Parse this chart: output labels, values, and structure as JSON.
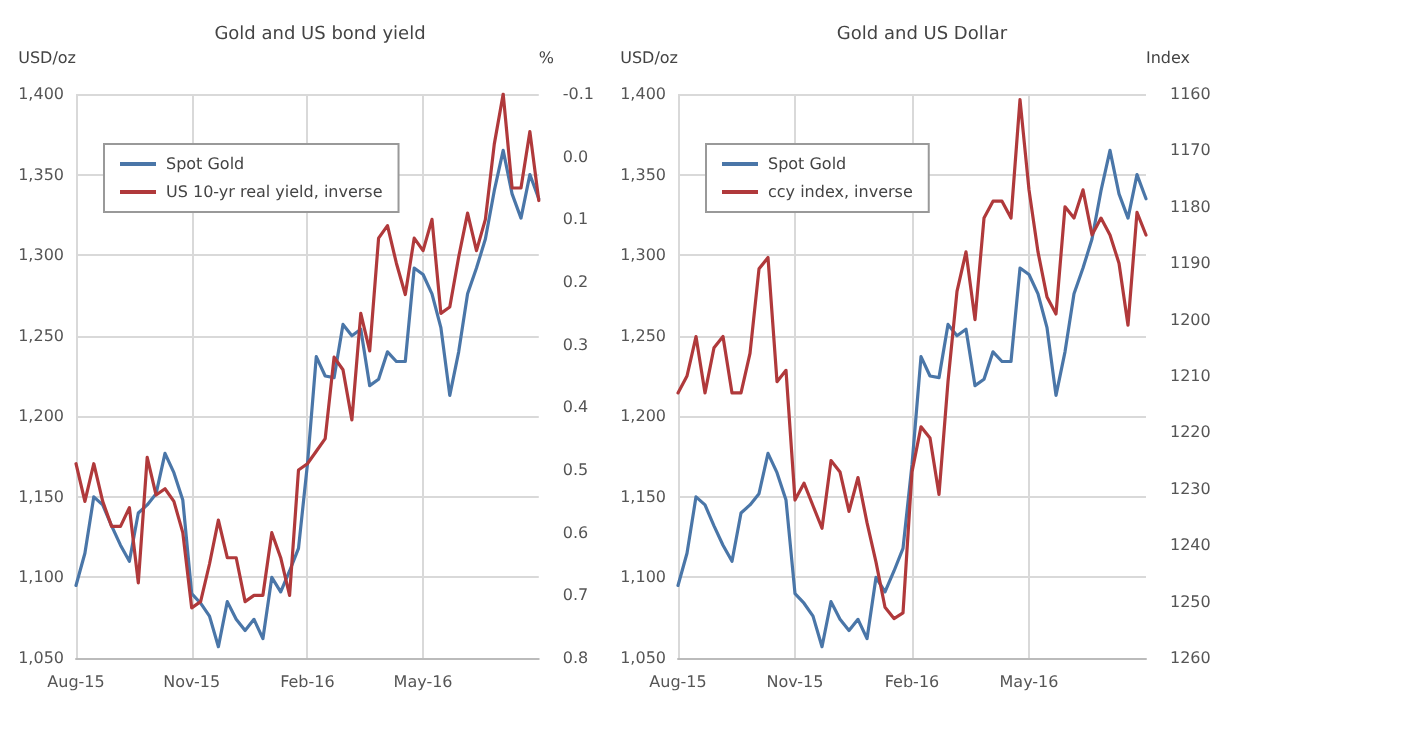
{
  "chart_data": [
    {
      "type": "line",
      "title": "Gold and US bond yield",
      "ylabel": "USD/oz",
      "y2label": "%",
      "categories": [
        "Aug-15",
        null,
        null,
        null,
        null,
        null,
        null,
        null,
        null,
        null,
        null,
        null,
        null,
        "Nov-15",
        null,
        null,
        null,
        null,
        null,
        null,
        null,
        null,
        null,
        null,
        null,
        null,
        "Feb-16",
        null,
        null,
        null,
        null,
        null,
        null,
        null,
        null,
        null,
        null,
        null,
        null,
        "May-16",
        null,
        null,
        null,
        null,
        null,
        null,
        null,
        null,
        null,
        null,
        null,
        null,
        null
      ],
      "series": [
        {
          "name": "Spot Gold",
          "color": "#4a76a8",
          "values": [
            1095,
            1115,
            1150,
            1145,
            1132,
            1120,
            1110,
            1140,
            1145,
            1152,
            1177,
            1165,
            1148,
            1090,
            1084,
            1076,
            1057,
            1085,
            1074,
            1067,
            1074,
            1062,
            1100,
            1091,
            1104,
            1118,
            1170,
            1237,
            1225,
            1224,
            1257,
            1250,
            1254,
            1219,
            1223,
            1240,
            1234,
            1234,
            1292,
            1288,
            1276,
            1255,
            1213,
            1240,
            1276,
            1292,
            1310,
            1340,
            1365,
            1338,
            1323,
            1350,
            1335
          ]
        },
        {
          "name": "US 10-yr real yield, inverse",
          "color": "#b0393b",
          "axis": "y2",
          "values": [
            0.49,
            0.55,
            0.49,
            0.55,
            0.59,
            0.59,
            0.56,
            0.68,
            0.48,
            0.54,
            0.53,
            0.55,
            0.6,
            0.72,
            0.71,
            0.65,
            0.58,
            0.64,
            0.64,
            0.71,
            0.7,
            0.7,
            0.6,
            0.64,
            0.7,
            0.5,
            0.49,
            0.47,
            0.45,
            0.32,
            0.34,
            0.42,
            0.25,
            0.31,
            0.13,
            0.11,
            0.17,
            0.22,
            0.13,
            0.15,
            0.1,
            0.25,
            0.24,
            0.16,
            0.09,
            0.15,
            0.1,
            -0.02,
            -0.1,
            0.05,
            0.05,
            -0.04,
            0.07
          ]
        }
      ],
      "ylim": [
        1050,
        1400
      ],
      "yticks": [
        {
          "value": 1050,
          "label": "1,050"
        },
        {
          "value": 1100,
          "label": "1,100"
        },
        {
          "value": 1150,
          "label": "1,150"
        },
        {
          "value": 1200,
          "label": "1,200"
        },
        {
          "value": 1250,
          "label": "1,250"
        },
        {
          "value": 1300,
          "label": "1,300"
        },
        {
          "value": 1350,
          "label": "1,350"
        },
        {
          "value": 1400,
          "label": "1,400"
        }
      ],
      "y2lim": [
        0.8,
        -0.1
      ],
      "y2ticks": [
        -0.1,
        {
          "value": 0,
          "label": "0.0"
        },
        0.1,
        0.2,
        0.3,
        0.4,
        0.5,
        0.6,
        0.7,
        0.8
      ],
      "grid": true,
      "legend": "top left",
      "marker": "none",
      "line_style": "solid"
    },
    {
      "type": "line",
      "title": "Gold and US Dollar",
      "ylabel": "USD/oz",
      "y2label": "Index",
      "categories": [
        "Aug-15",
        null,
        null,
        null,
        null,
        null,
        null,
        null,
        null,
        null,
        null,
        null,
        null,
        "Nov-15",
        null,
        null,
        null,
        null,
        null,
        null,
        null,
        null,
        null,
        null,
        null,
        null,
        "Feb-16",
        null,
        null,
        null,
        null,
        null,
        null,
        null,
        null,
        null,
        null,
        null,
        null,
        "May-16",
        null,
        null,
        null,
        null,
        null,
        null,
        null,
        null,
        null,
        null,
        null,
        null,
        null
      ],
      "series": [
        {
          "name": "Spot Gold",
          "color": "#4a76a8",
          "values": [
            1095,
            1115,
            1150,
            1145,
            1132,
            1120,
            1110,
            1140,
            1145,
            1152,
            1177,
            1165,
            1148,
            1090,
            1084,
            1076,
            1057,
            1085,
            1074,
            1067,
            1074,
            1062,
            1100,
            1091,
            1104,
            1118,
            1170,
            1237,
            1225,
            1224,
            1257,
            1250,
            1254,
            1219,
            1223,
            1240,
            1234,
            1234,
            1292,
            1288,
            1276,
            1255,
            1213,
            1240,
            1276,
            1292,
            1310,
            1340,
            1365,
            1338,
            1323,
            1350,
            1335
          ]
        },
        {
          "name": "ccy index, inverse",
          "color": "#b0393b",
          "axis": "y2",
          "values": [
            1213,
            1210,
            1203,
            1213,
            1205,
            1203,
            1213,
            1213,
            1206,
            1191,
            1189,
            1211,
            1209,
            1232,
            1229,
            1233,
            1237,
            1225,
            1227,
            1234,
            1228,
            1236,
            1243,
            1251,
            1253,
            1252,
            1227,
            1219,
            1221,
            1231,
            1211,
            1195,
            1188,
            1200,
            1182,
            1179,
            1179,
            1182,
            1161,
            1177,
            1188,
            1196,
            1199,
            1180,
            1182,
            1177,
            1185,
            1182,
            1185,
            1190,
            1201,
            1181,
            1185
          ]
        }
      ],
      "ylim": [
        1050,
        1400
      ],
      "yticks": [
        {
          "value": 1050,
          "label": "1,050"
        },
        {
          "value": 1100,
          "label": "1,100"
        },
        {
          "value": 1150,
          "label": "1,150"
        },
        {
          "value": 1200,
          "label": "1,200"
        },
        {
          "value": 1250,
          "label": "1,250"
        },
        {
          "value": 1300,
          "label": "1,300"
        },
        {
          "value": 1350,
          "label": "1,350"
        },
        {
          "value": 1400,
          "label": "1,400"
        }
      ],
      "y2lim": [
        1260,
        1160
      ],
      "y2ticks": [
        1160,
        1170,
        1180,
        1190,
        1200,
        1210,
        1220,
        1230,
        1240,
        1250,
        1260
      ],
      "grid": true,
      "legend": "top left",
      "marker": "none",
      "line_style": "solid"
    }
  ]
}
